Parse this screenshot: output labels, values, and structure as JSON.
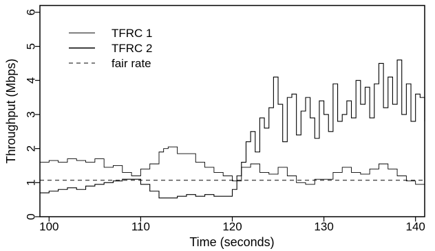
{
  "chart_data": {
    "type": "line",
    "xlabel": "Time (seconds)",
    "ylabel": "Throughput (Mbps)",
    "xlim": [
      99,
      141
    ],
    "ylim": [
      0,
      6.2
    ],
    "xticks": [
      100,
      110,
      120,
      130,
      140
    ],
    "yticks": [
      0,
      1,
      2,
      3,
      4,
      5,
      6
    ],
    "grid": false,
    "legend_position": "top-left",
    "series": [
      {
        "name": "TFRC 1",
        "style": "solid-thin",
        "x": [
          99,
          100,
          101,
          102,
          103,
          104,
          105,
          106,
          107,
          108,
          109,
          110,
          111,
          112,
          112.5,
          113,
          114,
          115,
          116,
          117,
          118,
          119,
          120,
          121,
          122,
          123,
          124,
          125,
          126,
          127,
          128,
          129,
          130,
          131,
          132,
          133,
          134,
          135,
          136,
          137,
          138,
          139,
          140,
          141
        ],
        "y": [
          1.6,
          1.65,
          1.6,
          1.7,
          1.65,
          1.6,
          1.7,
          1.45,
          1.5,
          1.3,
          1.2,
          1.4,
          1.55,
          1.9,
          2.0,
          2.05,
          1.85,
          1.85,
          1.6,
          1.45,
          1.3,
          1.2,
          1.05,
          1.45,
          1.55,
          1.3,
          1.25,
          1.45,
          1.2,
          1.0,
          0.95,
          1.1,
          1.1,
          1.3,
          1.45,
          1.3,
          1.25,
          1.4,
          1.55,
          1.4,
          1.2,
          1.05,
          0.95,
          1.05
        ]
      },
      {
        "name": "TFRC 2",
        "style": "solid-noisy",
        "x": [
          99,
          100,
          101,
          102,
          103,
          104,
          105,
          106,
          107,
          108,
          109,
          110,
          111,
          112,
          113,
          114,
          115,
          116,
          117,
          118,
          119,
          120,
          120.5,
          121,
          121.5,
          122,
          122.5,
          123,
          123.5,
          124,
          124.5,
          125,
          125.5,
          126,
          126.5,
          127,
          127.5,
          128,
          128.5,
          129,
          129.5,
          130,
          130.5,
          131,
          131.5,
          132,
          132.5,
          133,
          133.5,
          134,
          134.5,
          135,
          135.5,
          136,
          136.5,
          137,
          137.5,
          138,
          138.5,
          139,
          139.5,
          140,
          140.5,
          141
        ],
        "y": [
          0.7,
          0.75,
          0.8,
          0.85,
          0.8,
          0.9,
          0.95,
          1.0,
          1.05,
          1.1,
          1.1,
          0.95,
          0.75,
          0.55,
          0.55,
          0.6,
          0.65,
          0.6,
          0.65,
          0.6,
          0.6,
          0.8,
          1.2,
          1.6,
          2.2,
          2.5,
          1.9,
          2.9,
          2.6,
          3.2,
          4.1,
          3.3,
          2.2,
          3.5,
          3.6,
          2.4,
          3.1,
          3.5,
          2.9,
          2.3,
          3.4,
          3.0,
          2.5,
          3.9,
          2.8,
          3.0,
          3.4,
          2.9,
          4.0,
          3.3,
          3.8,
          2.9,
          3.9,
          4.5,
          3.2,
          4.1,
          3.3,
          4.6,
          3.0,
          3.9,
          2.8,
          3.6,
          3.5,
          2.8
        ]
      },
      {
        "name": "fair rate",
        "style": "dashed",
        "x": [
          99,
          141
        ],
        "y": [
          1.07,
          1.07
        ]
      }
    ]
  },
  "legend": {
    "items": [
      "TFRC 1",
      "TFRC 2",
      "fair rate"
    ]
  }
}
